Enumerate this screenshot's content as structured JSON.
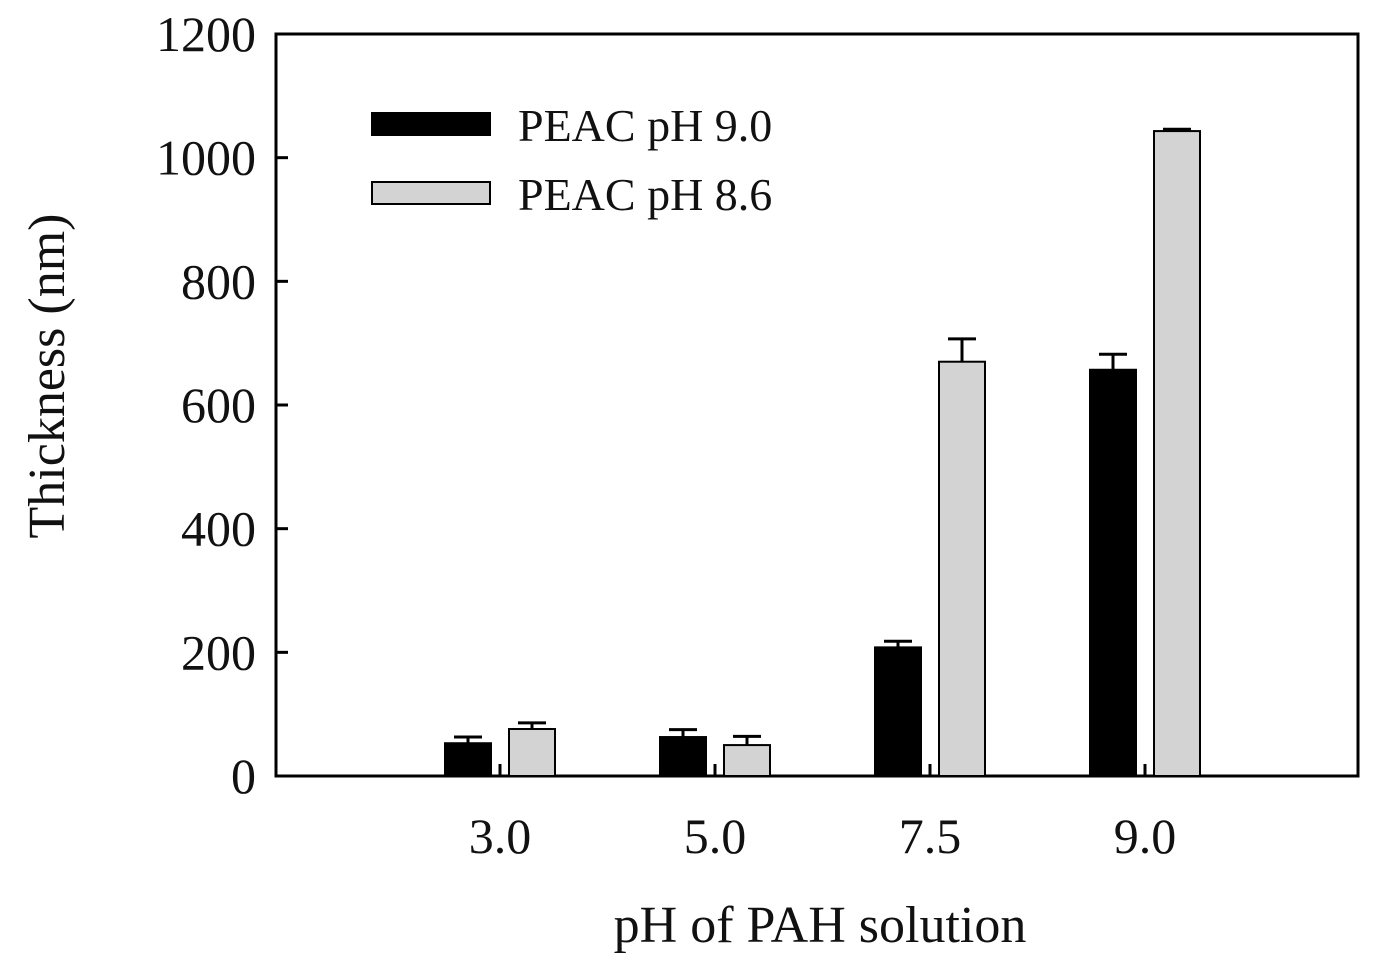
{
  "chart_data": {
    "type": "bar",
    "title": "",
    "xlabel": "pH of PAH solution",
    "ylabel": "Thickness (nm)",
    "categories": [
      "3.0",
      "5.0",
      "7.5",
      "9.0"
    ],
    "ylim": [
      0,
      1200
    ],
    "yticks": [
      "0",
      "200",
      "400",
      "600",
      "800",
      "1000",
      "1200"
    ],
    "grid": false,
    "legend_position": "top-left",
    "series": [
      {
        "name": "PEAC pH 9.0",
        "color": "#000000",
        "values": [
          53,
          63,
          208,
          657
        ],
        "errors": [
          10,
          12,
          10,
          25
        ]
      },
      {
        "name": "PEAC pH 8.6",
        "color": "#d3d3d3",
        "values": [
          76,
          50,
          670,
          1043
        ],
        "errors": [
          10,
          14,
          37,
          3
        ]
      }
    ]
  }
}
